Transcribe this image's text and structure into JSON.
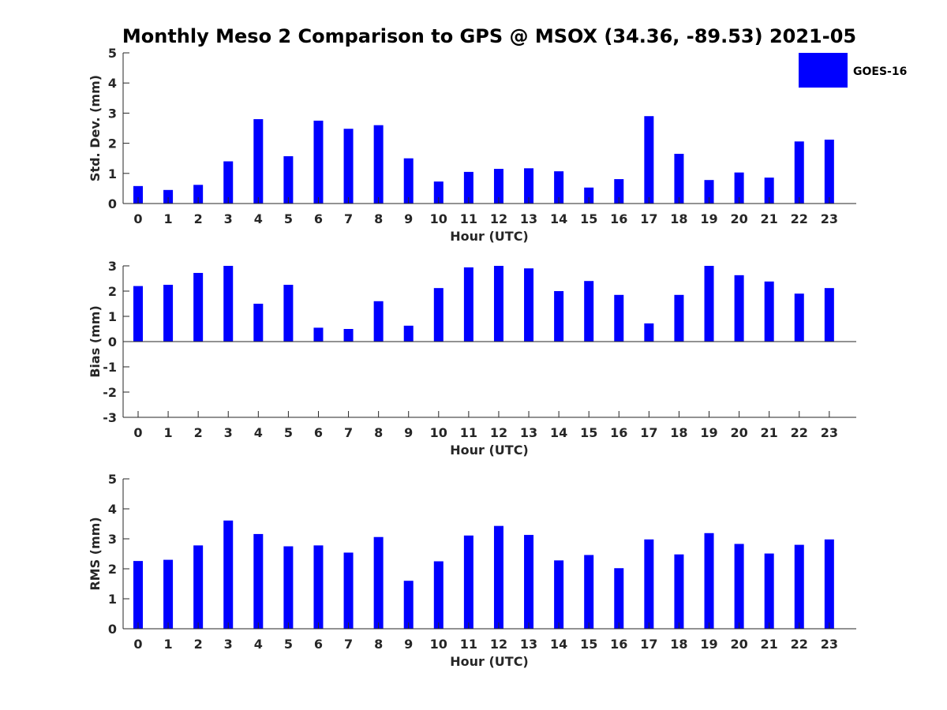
{
  "title": "Monthly Meso 2 Comparison to GPS @ MSOX (34.36, -89.53) 2021-05",
  "colors": {
    "bar": "#0000ff",
    "axis": "#262626",
    "background": "#ffffff"
  },
  "legend": {
    "label": "GOES-16",
    "placement": "top-right"
  },
  "chart_data": [
    {
      "type": "bar",
      "title": "Monthly Meso 2 Comparison to GPS @ MSOX (34.36, -89.53) 2021-05",
      "xlabel": "Hour (UTC)",
      "ylabel": "Std. Dev. (mm)",
      "ylim": [
        0,
        5
      ],
      "yticks": [
        "0",
        "1",
        "2",
        "3",
        "4",
        "5"
      ],
      "categories": [
        "0",
        "1",
        "2",
        "3",
        "4",
        "5",
        "6",
        "7",
        "8",
        "9",
        "10",
        "11",
        "12",
        "13",
        "14",
        "15",
        "16",
        "17",
        "18",
        "19",
        "20",
        "21",
        "22",
        "23"
      ],
      "series": [
        {
          "name": "GOES-16",
          "values": [
            0.58,
            0.45,
            0.62,
            1.4,
            2.8,
            1.57,
            2.75,
            2.48,
            2.6,
            1.5,
            0.73,
            1.05,
            1.15,
            1.17,
            1.07,
            0.53,
            0.81,
            2.9,
            1.65,
            0.78,
            1.03,
            0.86,
            2.06,
            2.12
          ]
        }
      ],
      "grid": false,
      "legend": "top-right"
    },
    {
      "type": "bar",
      "xlabel": "Hour (UTC)",
      "ylabel": "Bias (mm)",
      "ylim": [
        -3,
        3
      ],
      "yticks": [
        "-3",
        "-2",
        "-1",
        "0",
        "1",
        "2",
        "3"
      ],
      "categories": [
        "0",
        "1",
        "2",
        "3",
        "4",
        "5",
        "6",
        "7",
        "8",
        "9",
        "10",
        "11",
        "12",
        "13",
        "14",
        "15",
        "16",
        "17",
        "18",
        "19",
        "20",
        "21",
        "22",
        "23"
      ],
      "series": [
        {
          "name": "GOES-16",
          "values": [
            2.2,
            2.25,
            2.72,
            3.0,
            1.5,
            2.25,
            0.55,
            0.5,
            1.6,
            0.63,
            2.12,
            2.94,
            3.0,
            2.9,
            2.0,
            2.4,
            1.85,
            0.72,
            1.85,
            3.0,
            2.63,
            2.38,
            1.9,
            2.12
          ]
        }
      ],
      "grid": false
    },
    {
      "type": "bar",
      "xlabel": "Hour (UTC)",
      "ylabel": "RMS (mm)",
      "ylim": [
        0,
        5
      ],
      "yticks": [
        "0",
        "1",
        "2",
        "3",
        "4",
        "5"
      ],
      "categories": [
        "0",
        "1",
        "2",
        "3",
        "4",
        "5",
        "6",
        "7",
        "8",
        "9",
        "10",
        "11",
        "12",
        "13",
        "14",
        "15",
        "16",
        "17",
        "18",
        "19",
        "20",
        "21",
        "22",
        "23"
      ],
      "series": [
        {
          "name": "GOES-16",
          "values": [
            2.26,
            2.3,
            2.78,
            3.61,
            3.16,
            2.75,
            2.78,
            2.54,
            3.06,
            1.6,
            2.25,
            3.11,
            3.43,
            3.13,
            2.28,
            2.46,
            2.02,
            2.98,
            2.48,
            3.19,
            2.83,
            2.51,
            2.8,
            2.98
          ]
        }
      ],
      "grid": false
    }
  ]
}
